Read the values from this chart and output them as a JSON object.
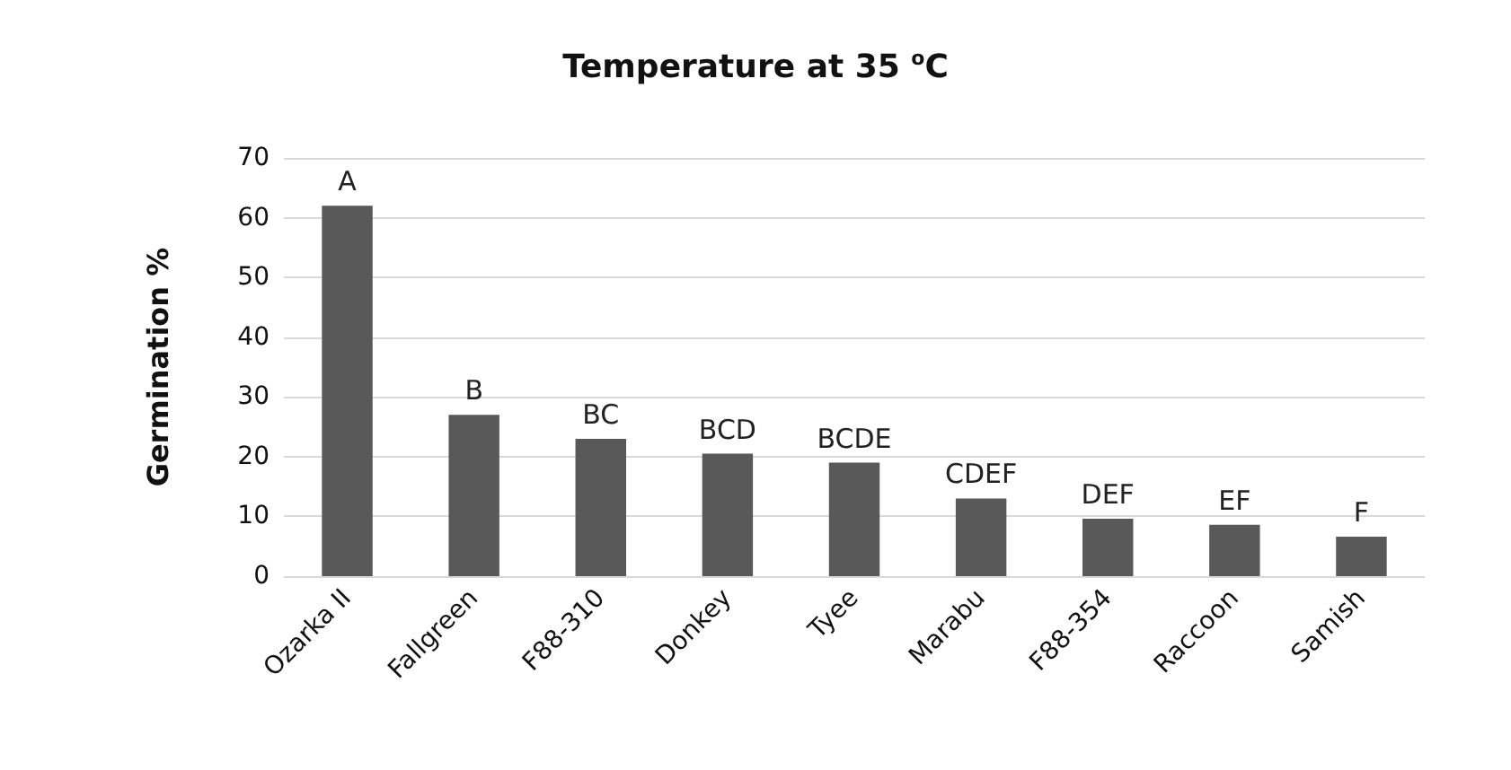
{
  "chart_data": {
    "type": "bar",
    "title": "Temperature at 35 $^{o}$C",
    "ylabel": "Germination %",
    "categories": [
      "Ozarka II",
      "Fallgreen",
      "F88-310",
      "Donkey",
      "Tyee",
      "Marabu",
      "F88-354",
      "Raccoon",
      "Samish"
    ],
    "values": [
      62,
      27,
      23,
      20.5,
      19,
      13,
      9.6,
      8.6,
      6.6
    ],
    "color": "#595959",
    "ylim": [
      0,
      70
    ],
    "yticks": [
      0,
      10,
      20,
      30,
      40,
      50,
      60,
      70
    ],
    "grid": "y",
    "annotations": [
      {
        "text": "A",
        "x": "Ozarka II",
        "y": 62
      },
      {
        "text": "B",
        "x": "Fallgreen",
        "y": 27
      },
      {
        "text": "BC",
        "x": "F88-310",
        "y": 23
      },
      {
        "text": "BCD",
        "x": "Donkey",
        "y": 20.5
      },
      {
        "text": "BCDE",
        "x": "Tyee",
        "y": 19
      },
      {
        "text": "CDEF",
        "x": "Marabu",
        "y": 13
      },
      {
        "text": "DEF",
        "x": "F88-354",
        "y": 9.6
      },
      {
        "text": "EF",
        "x": "Raccoon",
        "y": 8.6
      },
      {
        "text": "F",
        "x": "Samish",
        "y": 6.6
      }
    ]
  }
}
